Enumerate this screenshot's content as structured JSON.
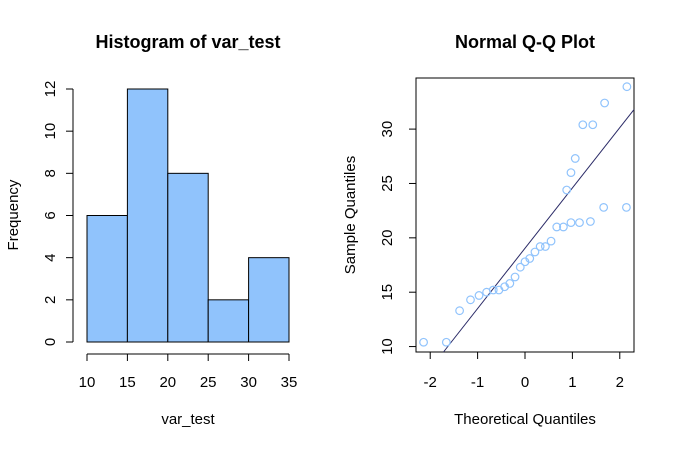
{
  "chart_data": [
    {
      "type": "bar",
      "title": "Histogram of var_test",
      "xlabel": "var_test",
      "ylabel": "Frequency",
      "bins": [
        {
          "from": 10,
          "to": 15,
          "count": 6
        },
        {
          "from": 15,
          "to": 20,
          "count": 12
        },
        {
          "from": 20,
          "to": 25,
          "count": 8
        },
        {
          "from": 25,
          "to": 30,
          "count": 2
        },
        {
          "from": 30,
          "to": 35,
          "count": 4
        }
      ],
      "xlim": [
        10,
        35
      ],
      "ylim": [
        0,
        12
      ],
      "xticks": [
        10,
        15,
        20,
        25,
        30,
        35
      ],
      "yticks": [
        0,
        2,
        4,
        6,
        8,
        10,
        12
      ],
      "bar_color": "#90c3fc",
      "edge_color": "#000000"
    },
    {
      "type": "scatter",
      "title": "Normal Q-Q Plot",
      "xlabel": "Theoretical Quantiles",
      "ylabel": "Sample Quantiles",
      "xlim": [
        -2.3,
        2.3
      ],
      "ylim": [
        9.5,
        34.7
      ],
      "xticks": [
        -2,
        -1,
        0,
        1,
        2
      ],
      "yticks": [
        10,
        15,
        20,
        25,
        30
      ],
      "points": [
        {
          "x": -2.14,
          "y": 10.4
        },
        {
          "x": -1.66,
          "y": 10.4
        },
        {
          "x": -1.38,
          "y": 13.3
        },
        {
          "x": -1.15,
          "y": 14.3
        },
        {
          "x": -0.97,
          "y": 14.7
        },
        {
          "x": -0.81,
          "y": 15.0
        },
        {
          "x": -0.67,
          "y": 15.2
        },
        {
          "x": -0.55,
          "y": 15.2
        },
        {
          "x": -0.43,
          "y": 15.5
        },
        {
          "x": -0.32,
          "y": 15.8
        },
        {
          "x": -0.21,
          "y": 16.4
        },
        {
          "x": -0.1,
          "y": 17.3
        },
        {
          "x": 0.0,
          "y": 17.8
        },
        {
          "x": 0.1,
          "y": 18.1
        },
        {
          "x": 0.21,
          "y": 18.7
        },
        {
          "x": 0.32,
          "y": 19.2
        },
        {
          "x": 0.43,
          "y": 19.2
        },
        {
          "x": 0.55,
          "y": 19.7
        },
        {
          "x": 0.67,
          "y": 21.0
        },
        {
          "x": 0.81,
          "y": 21.0
        },
        {
          "x": 0.97,
          "y": 21.4
        },
        {
          "x": 1.15,
          "y": 21.4
        },
        {
          "x": 1.38,
          "y": 21.5
        },
        {
          "x": 1.66,
          "y": 22.8
        },
        {
          "x": 2.14,
          "y": 22.8
        }
      ],
      "upper_points": [
        {
          "x": 0.88,
          "y": 24.4
        },
        {
          "x": 0.97,
          "y": 26.0
        },
        {
          "x": 1.06,
          "y": 27.3
        },
        {
          "x": 1.22,
          "y": 30.4
        },
        {
          "x": 1.43,
          "y": 30.4
        },
        {
          "x": 1.68,
          "y": 32.4
        },
        {
          "x": 2.15,
          "y": 33.9
        }
      ],
      "reference_line": {
        "x1": -1.72,
        "y1": 9.5,
        "x2": 2.3,
        "y2": 31.8
      },
      "point_color": "#90c3fc",
      "line_color": "#2a2a66"
    }
  ]
}
